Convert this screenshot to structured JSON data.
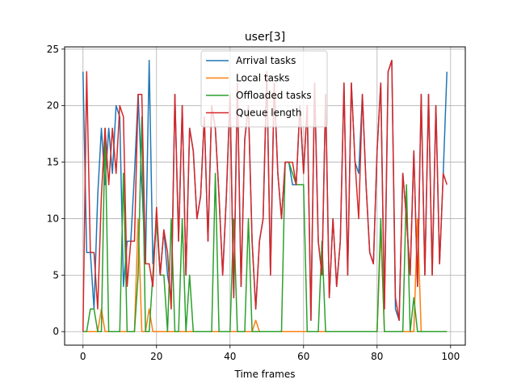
{
  "chart_data": {
    "type": "line",
    "title": "user[3]",
    "xlabel": "Time frames",
    "ylabel": "",
    "xlim": [
      -5,
      104
    ],
    "ylim": [
      -1.2,
      25.2
    ],
    "xticks": [
      0,
      20,
      40,
      60,
      80,
      100
    ],
    "yticks": [
      0,
      5,
      10,
      15,
      20,
      25
    ],
    "grid": true,
    "legend_position": "upper center",
    "x": [
      0,
      1,
      2,
      3,
      4,
      5,
      6,
      7,
      8,
      9,
      10,
      11,
      12,
      13,
      14,
      15,
      16,
      17,
      18,
      19,
      20,
      21,
      22,
      23,
      24,
      25,
      26,
      27,
      28,
      29,
      30,
      31,
      32,
      33,
      34,
      35,
      36,
      37,
      38,
      39,
      40,
      41,
      42,
      43,
      44,
      45,
      46,
      47,
      48,
      49,
      50,
      51,
      52,
      53,
      54,
      55,
      56,
      57,
      58,
      59,
      60,
      61,
      62,
      63,
      64,
      65,
      66,
      67,
      68,
      69,
      70,
      71,
      72,
      73,
      74,
      75,
      76,
      77,
      78,
      79,
      80,
      81,
      82,
      83,
      84,
      85,
      86,
      87,
      88,
      89,
      90,
      91,
      92,
      93,
      94,
      95,
      96,
      97,
      98,
      99
    ],
    "series": [
      {
        "name": "Arrival tasks",
        "color": "#1f77b4",
        "values": [
          23,
          7,
          7,
          2,
          12,
          18,
          13,
          18,
          14,
          20,
          19,
          4,
          8,
          8,
          14,
          21,
          13,
          6,
          24,
          6,
          10,
          5,
          9,
          5,
          3,
          21,
          8,
          20,
          5,
          18,
          16,
          10,
          12,
          19,
          8,
          20,
          18,
          12,
          5,
          12,
          21,
          3,
          22,
          4,
          17,
          20,
          8,
          2,
          8,
          10,
          23,
          5,
          22,
          14,
          10,
          15,
          15,
          13,
          13,
          20,
          14,
          20,
          1,
          22,
          8,
          5,
          21,
          3,
          10,
          4,
          8,
          22,
          5,
          22,
          15,
          14,
          21,
          13,
          7,
          6,
          16,
          22,
          2,
          23,
          24,
          2,
          1,
          14,
          10,
          5,
          16,
          4,
          21,
          5,
          21,
          5,
          20,
          6,
          14,
          23
        ]
      },
      {
        "name": "Local tasks",
        "color": "#ff7f0e",
        "values": [
          0,
          0,
          0,
          0,
          0,
          2,
          0,
          0,
          0,
          0,
          0,
          0,
          0,
          0,
          0,
          10,
          0,
          0,
          2,
          0,
          0,
          0,
          0,
          0,
          0,
          0,
          0,
          0,
          0,
          0,
          0,
          0,
          0,
          0,
          0,
          0,
          0,
          0,
          0,
          0,
          0,
          0,
          0,
          0,
          0,
          0,
          0,
          1,
          0,
          0,
          0,
          0,
          0,
          0,
          0,
          0,
          0,
          0,
          0,
          0,
          0,
          0,
          0,
          0,
          0,
          0,
          0,
          0,
          0,
          0,
          0,
          0,
          0,
          0,
          0,
          0,
          0,
          0,
          0,
          0,
          0,
          9,
          0,
          0,
          0,
          0,
          0,
          0,
          0,
          0,
          0,
          10,
          0,
          0,
          0,
          0,
          0,
          0,
          0,
          0
        ]
      },
      {
        "name": "Offloaded tasks",
        "color": "#2ca02c",
        "values": [
          0,
          0,
          2,
          2,
          0,
          0,
          18,
          0,
          0,
          0,
          0,
          14,
          0,
          0,
          0,
          5,
          19,
          0,
          0,
          5,
          10,
          5,
          5,
          0,
          10,
          0,
          0,
          10,
          0,
          5,
          0,
          0,
          0,
          0,
          0,
          0,
          14,
          0,
          0,
          0,
          0,
          10,
          0,
          0,
          0,
          10,
          0,
          0,
          0,
          0,
          0,
          0,
          0,
          0,
          0,
          15,
          15,
          14,
          13,
          13,
          13,
          0,
          0,
          0,
          0,
          8,
          0,
          0,
          0,
          0,
          0,
          0,
          0,
          0,
          0,
          0,
          0,
          0,
          0,
          0,
          0,
          10,
          0,
          0,
          0,
          0,
          0,
          0,
          13,
          0,
          3,
          0,
          0,
          0,
          0,
          0,
          0,
          0,
          0,
          0
        ]
      },
      {
        "name": "Queue length",
        "color": "#d62728",
        "values": [
          0,
          23,
          7,
          7,
          2,
          12,
          18,
          13,
          18,
          14,
          20,
          19,
          4,
          8,
          8,
          21,
          21,
          6,
          6,
          4,
          11,
          5,
          9,
          7,
          2,
          21,
          8,
          20,
          5,
          18,
          16,
          10,
          12,
          19,
          8,
          20,
          18,
          12,
          5,
          12,
          21,
          3,
          22,
          4,
          17,
          20,
          8,
          2,
          8,
          10,
          23,
          5,
          22,
          14,
          10,
          15,
          15,
          15,
          13,
          20,
          14,
          20,
          1,
          22,
          8,
          5,
          21,
          3,
          10,
          4,
          8,
          22,
          5,
          22,
          15,
          10,
          21,
          13,
          7,
          6,
          16,
          22,
          2,
          23,
          24,
          3,
          1,
          14,
          10,
          5,
          16,
          4,
          21,
          5,
          21,
          5,
          20,
          6,
          14,
          13
        ]
      }
    ]
  }
}
